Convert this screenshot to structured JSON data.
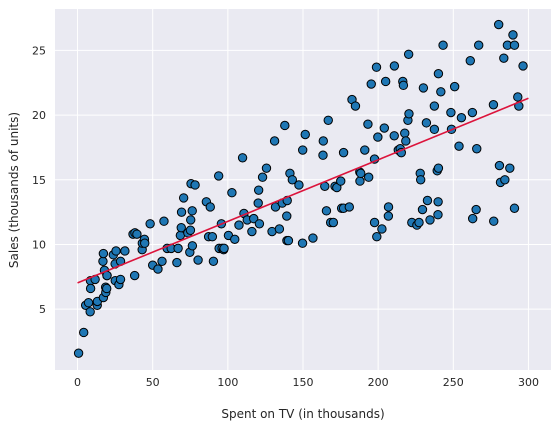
{
  "chart_data": {
    "type": "scatter",
    "title": "",
    "xlabel": "Spent on TV (in thousands)",
    "ylabel": "Sales (thousands of units)",
    "xlim": [
      -15,
      315
    ],
    "ylim": [
      0.3,
      28.2
    ],
    "xticks": [
      0,
      50,
      100,
      150,
      200,
      250,
      300
    ],
    "yticks": [
      5,
      10,
      15,
      20,
      25
    ],
    "grid": true,
    "colors": {
      "background": "#eaeaf2",
      "grid": "#ffffff",
      "point_fill": "#1f77b4",
      "point_edge": "#000000",
      "line": "#dc143c"
    },
    "fit_line": {
      "x": [
        0,
        300
      ],
      "y": [
        7.03,
        21.3
      ]
    },
    "series": [
      {
        "points": [
          [
            0.7,
            1.6
          ],
          [
            4.1,
            3.2
          ],
          [
            5.4,
            5.3
          ],
          [
            7.3,
            5.5
          ],
          [
            8.4,
            4.8
          ],
          [
            8.6,
            7.2
          ],
          [
            8.7,
            6.6
          ],
          [
            11.7,
            7.3
          ],
          [
            13.1,
            5.3
          ],
          [
            13.2,
            5.6
          ],
          [
            16.9,
            8.7
          ],
          [
            17.2,
            5.9
          ],
          [
            17.2,
            9.3
          ],
          [
            17.9,
            8.0
          ],
          [
            18.7,
            6.7
          ],
          [
            18.8,
            6.3
          ],
          [
            19.4,
            6.6
          ],
          [
            19.6,
            7.6
          ],
          [
            19.6,
            7.6
          ],
          [
            23.8,
            9.2
          ],
          [
            25.0,
            8.5
          ],
          [
            25.1,
            7.2
          ],
          [
            25.6,
            9.5
          ],
          [
            27.5,
            6.9
          ],
          [
            28.6,
            7.3
          ],
          [
            28.6,
            8.7
          ],
          [
            31.5,
            9.5
          ],
          [
            36.9,
            10.8
          ],
          [
            38.0,
            7.6
          ],
          [
            38.2,
            10.9
          ],
          [
            39.5,
            10.8
          ],
          [
            43.0,
            9.6
          ],
          [
            43.1,
            10.1
          ],
          [
            44.5,
            10.4
          ],
          [
            44.7,
            10.1
          ],
          [
            48.3,
            11.6
          ],
          [
            50.0,
            8.4
          ],
          [
            53.5,
            8.1
          ],
          [
            56.2,
            8.7
          ],
          [
            57.5,
            11.8
          ],
          [
            59.6,
            9.7
          ],
          [
            62.3,
            9.7
          ],
          [
            66.1,
            8.6
          ],
          [
            66.9,
            9.7
          ],
          [
            68.4,
            10.7
          ],
          [
            69.0,
            11.3
          ],
          [
            69.2,
            12.5
          ],
          [
            70.6,
            13.6
          ],
          [
            73.4,
            10.9
          ],
          [
            74.7,
            9.4
          ],
          [
            75.1,
            11.1
          ],
          [
            75.3,
            11.9
          ],
          [
            75.5,
            14.7
          ],
          [
            76.3,
            12.6
          ],
          [
            76.4,
            9.9
          ],
          [
            78.2,
            14.6
          ],
          [
            80.2,
            8.8
          ],
          [
            85.7,
            13.3
          ],
          [
            87.2,
            10.6
          ],
          [
            88.3,
            12.9
          ],
          [
            89.7,
            10.6
          ],
          [
            90.4,
            8.7
          ],
          [
            93.9,
            15.3
          ],
          [
            94.2,
            9.7
          ],
          [
            95.7,
            11.6
          ],
          [
            96.2,
            9.7
          ],
          [
            97.2,
            9.6
          ],
          [
            97.5,
            9.7
          ],
          [
            100.4,
            10.7
          ],
          [
            102.7,
            14.0
          ],
          [
            104.6,
            10.4
          ],
          [
            107.4,
            11.5
          ],
          [
            109.8,
            16.7
          ],
          [
            110.7,
            12.4
          ],
          [
            112.9,
            11.9
          ],
          [
            116.0,
            11.0
          ],
          [
            117.2,
            12.0
          ],
          [
            120.2,
            13.2
          ],
          [
            120.5,
            14.2
          ],
          [
            121.0,
            11.6
          ],
          [
            123.1,
            15.2
          ],
          [
            125.7,
            15.9
          ],
          [
            129.4,
            11.0
          ],
          [
            131.1,
            18.0
          ],
          [
            131.7,
            12.9
          ],
          [
            134.3,
            11.2
          ],
          [
            136.2,
            13.2
          ],
          [
            137.9,
            19.2
          ],
          [
            139.2,
            12.2
          ],
          [
            139.3,
            10.3
          ],
          [
            139.5,
            13.4
          ],
          [
            140.3,
            10.3
          ],
          [
            141.3,
            15.5
          ],
          [
            142.9,
            15.0
          ],
          [
            147.3,
            14.6
          ],
          [
            149.7,
            10.1
          ],
          [
            149.8,
            17.3
          ],
          [
            151.5,
            18.5
          ],
          [
            156.6,
            10.5
          ],
          [
            163.3,
            16.9
          ],
          [
            163.5,
            18.0
          ],
          [
            164.5,
            14.5
          ],
          [
            165.6,
            12.6
          ],
          [
            166.8,
            19.6
          ],
          [
            168.4,
            11.7
          ],
          [
            170.2,
            11.7
          ],
          [
            171.3,
            14.5
          ],
          [
            172.5,
            14.4
          ],
          [
            175.1,
            14.9
          ],
          [
            175.7,
            12.8
          ],
          [
            177.0,
            17.1
          ],
          [
            177.0,
            12.8
          ],
          [
            180.8,
            12.9
          ],
          [
            182.6,
            21.2
          ],
          [
            184.9,
            20.7
          ],
          [
            187.8,
            15.6
          ],
          [
            187.9,
            14.9
          ],
          [
            188.4,
            15.5
          ],
          [
            191.1,
            17.3
          ],
          [
            193.2,
            19.3
          ],
          [
            193.7,
            15.2
          ],
          [
            195.4,
            22.4
          ],
          [
            197.6,
            16.6
          ],
          [
            197.6,
            11.7
          ],
          [
            198.9,
            23.7
          ],
          [
            199.1,
            10.6
          ],
          [
            199.8,
            18.3
          ],
          [
            202.5,
            11.2
          ],
          [
            204.1,
            19.0
          ],
          [
            205.0,
            22.6
          ],
          [
            206.8,
            12.2
          ],
          [
            206.9,
            12.9
          ],
          [
            210.7,
            18.4
          ],
          [
            210.8,
            23.8
          ],
          [
            213.4,
            17.3
          ],
          [
            214.7,
            17.4
          ],
          [
            215.4,
            17.1
          ],
          [
            216.4,
            22.6
          ],
          [
            216.8,
            22.3
          ],
          [
            217.7,
            18.6
          ],
          [
            218.4,
            18.0
          ],
          [
            219.8,
            19.6
          ],
          [
            220.3,
            24.7
          ],
          [
            220.5,
            20.1
          ],
          [
            222.4,
            11.7
          ],
          [
            225.8,
            11.5
          ],
          [
            227.2,
            11.7
          ],
          [
            228.0,
            15.5
          ],
          [
            228.3,
            15.0
          ],
          [
            229.5,
            12.7
          ],
          [
            230.1,
            22.1
          ],
          [
            232.1,
            19.4
          ],
          [
            232.8,
            13.4
          ],
          [
            234.5,
            11.9
          ],
          [
            237.4,
            18.9
          ],
          [
            237.4,
            20.7
          ],
          [
            239.3,
            15.7
          ],
          [
            239.8,
            12.3
          ],
          [
            239.9,
            13.3
          ],
          [
            240.1,
            23.2
          ],
          [
            240.1,
            15.9
          ],
          [
            241.7,
            21.8
          ],
          [
            243.2,
            25.4
          ],
          [
            248.4,
            20.2
          ],
          [
            248.8,
            18.9
          ],
          [
            250.9,
            22.2
          ],
          [
            253.8,
            17.6
          ],
          [
            255.4,
            19.8
          ],
          [
            261.3,
            24.2
          ],
          [
            262.7,
            20.2
          ],
          [
            262.9,
            12.0
          ],
          [
            265.2,
            12.7
          ],
          [
            265.6,
            17.4
          ],
          [
            266.9,
            25.4
          ],
          [
            276.7,
            20.8
          ],
          [
            276.9,
            11.8
          ],
          [
            280.2,
            27.0
          ],
          [
            280.7,
            16.1
          ],
          [
            281.4,
            14.8
          ],
          [
            283.6,
            24.4
          ],
          [
            284.3,
            15.0
          ],
          [
            286.0,
            25.4
          ],
          [
            287.6,
            15.9
          ],
          [
            289.7,
            26.2
          ],
          [
            290.7,
            25.4
          ],
          [
            290.7,
            12.8
          ],
          [
            292.9,
            21.4
          ],
          [
            293.6,
            20.7
          ],
          [
            296.4,
            23.8
          ]
        ]
      }
    ]
  }
}
